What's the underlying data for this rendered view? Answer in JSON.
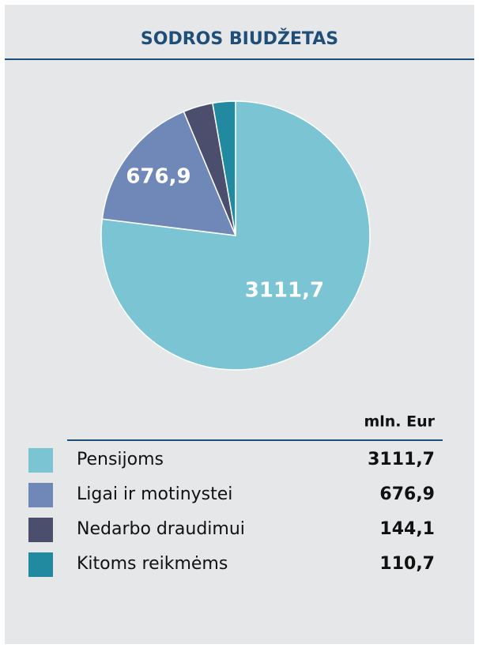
{
  "chart_data": {
    "type": "pie",
    "title": "SODROS BIUDŽETAS",
    "unit_label": "mln. Eur",
    "categories": [
      "Pensijoms",
      "Ligai ir motinystei",
      "Nedarbo draudimui",
      "Kitoms reikmėms"
    ],
    "values": [
      3111.7,
      676.9,
      144.1,
      110.7
    ],
    "value_labels": [
      "3111,7",
      "676,9",
      "144,1",
      "110,7"
    ],
    "colors": [
      "#7bc4d3",
      "#7088b7",
      "#4b4e6d",
      "#2189a0"
    ]
  }
}
